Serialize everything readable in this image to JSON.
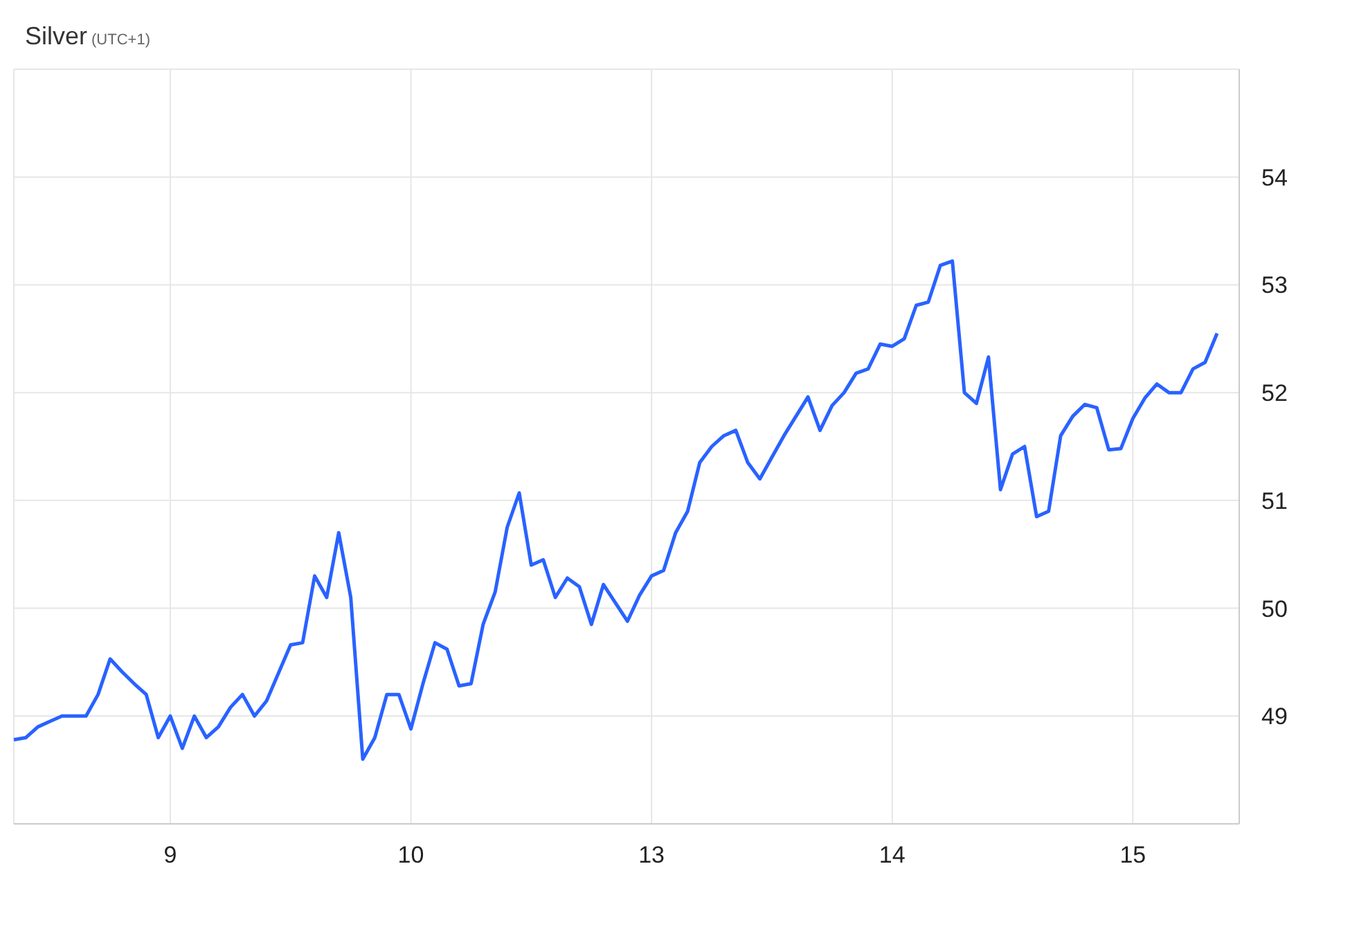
{
  "chart_data": {
    "type": "line",
    "title": "Silver",
    "subtitle": "(UTC+1)",
    "categories": [
      null,
      null,
      null,
      null,
      null,
      null,
      null,
      null,
      null,
      null,
      null,
      null,
      null,
      "9",
      null,
      null,
      null,
      null,
      null,
      null,
      null,
      null,
      null,
      null,
      null,
      null,
      null,
      null,
      null,
      null,
      null,
      null,
      null,
      "10",
      null,
      null,
      null,
      null,
      null,
      null,
      null,
      null,
      null,
      null,
      null,
      null,
      null,
      null,
      null,
      null,
      null,
      null,
      null,
      "13",
      null,
      null,
      null,
      null,
      null,
      null,
      null,
      null,
      null,
      null,
      null,
      null,
      null,
      null,
      null,
      null,
      null,
      null,
      null,
      "14",
      null,
      null,
      null,
      null,
      null,
      null,
      null,
      null,
      null,
      null,
      null,
      null,
      null,
      null,
      null,
      null,
      null,
      null,
      null,
      "15",
      null,
      null,
      null,
      null,
      null,
      null,
      null
    ],
    "series": [
      {
        "color": "#2962ff",
        "values": [
          48.78,
          48.8,
          48.9,
          48.95,
          49.0,
          49.0,
          49.0,
          49.2,
          49.53,
          49.41,
          49.3,
          49.2,
          48.8,
          49.0,
          48.7,
          49.0,
          48.8,
          48.9,
          49.08,
          49.2,
          49.0,
          49.14,
          49.4,
          49.66,
          49.68,
          50.3,
          50.1,
          50.7,
          50.1,
          48.6,
          48.8,
          49.2,
          49.2,
          48.88,
          49.3,
          49.68,
          49.62,
          49.28,
          49.3,
          49.85,
          50.15,
          50.75,
          51.07,
          50.4,
          50.45,
          50.1,
          50.28,
          50.2,
          49.85,
          50.22,
          50.05,
          49.88,
          50.12,
          50.3,
          50.35,
          50.7,
          50.9,
          51.35,
          51.5,
          51.6,
          51.65,
          51.35,
          51.2,
          51.4,
          51.6,
          51.78,
          51.96,
          51.65,
          51.88,
          52.0,
          52.18,
          52.22,
          52.45,
          52.43,
          52.5,
          52.81,
          52.84,
          53.18,
          53.22,
          52.0,
          51.9,
          52.33,
          51.1,
          51.43,
          51.5,
          50.85,
          50.9,
          51.6,
          51.78,
          51.89,
          51.86,
          51.47,
          51.48,
          51.76,
          51.95,
          52.08,
          52.0,
          52.0,
          52.22,
          52.28,
          52.55
        ]
      }
    ],
    "ylim": [
      48,
      55
    ],
    "yticks": [
      49,
      50,
      51,
      52,
      53,
      54
    ],
    "grid": true,
    "marker": "none",
    "line_style": "solid"
  }
}
